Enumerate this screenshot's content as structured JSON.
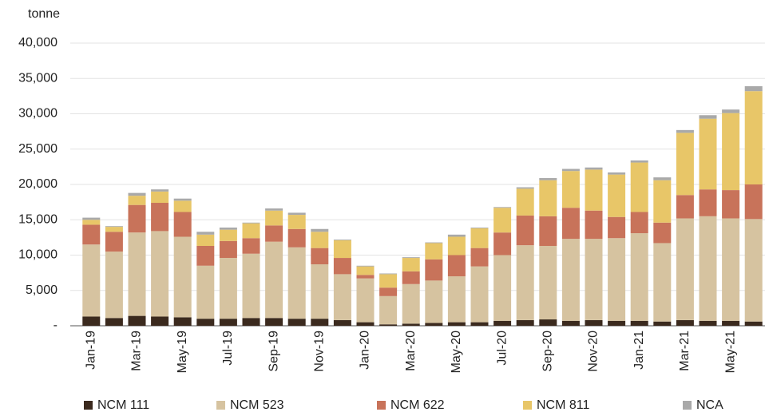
{
  "chart_data": {
    "type": "bar",
    "stacked": true,
    "y_axis_label": "tonne",
    "categories": [
      "Jan-19",
      null,
      "Mar-19",
      null,
      "May-19",
      null,
      "Jul-19",
      null,
      "Sep-19",
      null,
      "Nov-19",
      null,
      "Jan-20",
      null,
      "Mar-20",
      null,
      "May-20",
      null,
      "Jul-20",
      null,
      "Sep-20",
      null,
      "Nov-20",
      null,
      "Jan-21",
      null,
      "Mar-21",
      null,
      "May-21",
      null
    ],
    "series": [
      {
        "name": "NCM 111",
        "color": "#3b2a1e",
        "values": [
          1300,
          1100,
          1400,
          1300,
          1200,
          1000,
          1000,
          1100,
          1100,
          1000,
          1000,
          800,
          500,
          200,
          300,
          400,
          500,
          500,
          700,
          800,
          900,
          700,
          800,
          700,
          700,
          600,
          800,
          700,
          700,
          600
        ]
      },
      {
        "name": "NCM 523",
        "color": "#d6c3a0",
        "values": [
          10200,
          9400,
          11800,
          12100,
          11400,
          7500,
          8600,
          9100,
          10800,
          10100,
          7700,
          6500,
          6200,
          4000,
          5600,
          6000,
          6500,
          7900,
          9300,
          10600,
          10400,
          11600,
          11500,
          11700,
          12400,
          11100,
          14400,
          14800,
          14500,
          14500
        ]
      },
      {
        "name": "NCM 622",
        "color": "#c8735a",
        "values": [
          2800,
          2800,
          3900,
          4000,
          3500,
          2800,
          2400,
          2200,
          2300,
          2600,
          2300,
          2300,
          500,
          1200,
          1800,
          3000,
          3000,
          2600,
          3200,
          4200,
          4200,
          4400,
          4000,
          3000,
          3000,
          2900,
          3300,
          3800,
          4000,
          4900
        ]
      },
      {
        "name": "NCM 811",
        "color": "#e8c668",
        "values": [
          700,
          700,
          1300,
          1600,
          1600,
          1600,
          1600,
          2100,
          2100,
          2000,
          2300,
          2500,
          1200,
          1900,
          1900,
          2300,
          2600,
          2800,
          3500,
          3800,
          5100,
          5200,
          5800,
          6000,
          7000,
          6000,
          8800,
          10000,
          10900,
          13200
        ]
      },
      {
        "name": "NCA",
        "color": "#a9a9a9",
        "values": [
          300,
          100,
          400,
          300,
          300,
          400,
          300,
          100,
          300,
          300,
          400,
          100,
          100,
          100,
          100,
          100,
          300,
          100,
          100,
          200,
          300,
          300,
          300,
          300,
          300,
          400,
          400,
          500,
          500,
          700
        ]
      }
    ],
    "ylim": [
      0,
      40000
    ],
    "yticks": [
      {
        "value": 0,
        "label": "-"
      },
      {
        "value": 5000,
        "label": "5,000"
      },
      {
        "value": 10000,
        "label": "10,000"
      },
      {
        "value": 15000,
        "label": "15,000"
      },
      {
        "value": 20000,
        "label": "20,000"
      },
      {
        "value": 25000,
        "label": "25,000"
      },
      {
        "value": 30000,
        "label": "30,000"
      },
      {
        "value": 35000,
        "label": "35,000"
      },
      {
        "value": 40000,
        "label": "40,000"
      }
    ],
    "grid": true,
    "legend": "bottom"
  }
}
